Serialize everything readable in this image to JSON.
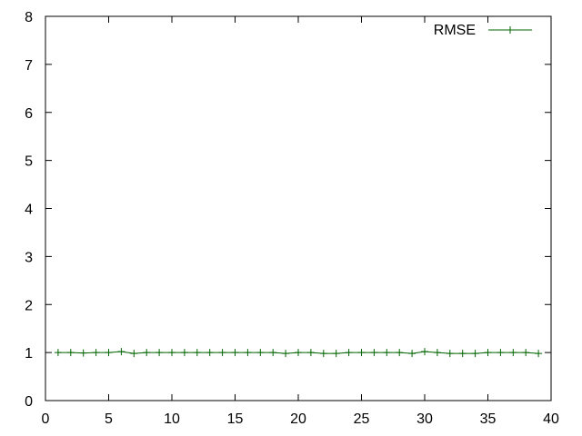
{
  "chart_data": {
    "type": "line",
    "title": "",
    "xlabel": "",
    "ylabel": "",
    "xlim": [
      0,
      40
    ],
    "ylim": [
      0,
      8
    ],
    "x_ticks": [
      "0",
      "5",
      "10",
      "15",
      "20",
      "25",
      "30",
      "35",
      "40"
    ],
    "y_ticks": [
      "0",
      "1",
      "2",
      "3",
      "4",
      "5",
      "6",
      "7",
      "8"
    ],
    "grid": false,
    "legend_position": "top-right",
    "series": [
      {
        "name": "RMSE",
        "color": "#006400",
        "marker": "plus",
        "x": [
          1,
          2,
          3,
          4,
          5,
          6,
          7,
          8,
          9,
          10,
          11,
          12,
          13,
          14,
          15,
          16,
          17,
          18,
          19,
          20,
          21,
          22,
          23,
          24,
          25,
          26,
          27,
          28,
          29,
          30,
          31,
          32,
          33,
          34,
          35,
          36,
          37,
          38,
          39
        ],
        "values": [
          1.0,
          1.0,
          0.99,
          1.0,
          1.0,
          1.02,
          0.98,
          1.0,
          1.0,
          1.0,
          1.0,
          1.0,
          1.0,
          1.0,
          1.0,
          1.0,
          1.0,
          1.0,
          0.98,
          1.0,
          1.0,
          0.98,
          0.98,
          1.0,
          1.0,
          1.0,
          1.0,
          1.0,
          0.98,
          1.02,
          1.0,
          0.98,
          0.98,
          0.98,
          1.0,
          1.0,
          1.0,
          1.0,
          0.98
        ]
      }
    ]
  }
}
